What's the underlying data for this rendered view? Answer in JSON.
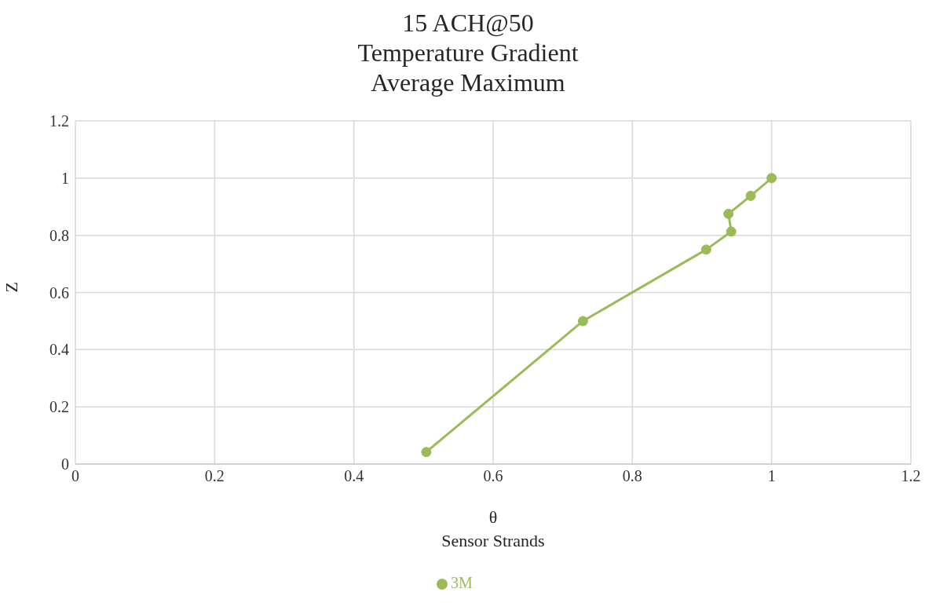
{
  "chart_data": {
    "type": "line",
    "title": "15 ACH@50\nTemperature Gradient\nAverage Maximum",
    "xlabel": "θ\nSensor Strands",
    "ylabel": "Z",
    "x": [
      0.504,
      0.729,
      0.906,
      0.942,
      0.938,
      0.97,
      1
    ],
    "series": [
      {
        "name": "3M",
        "color": "#9bbb59",
        "values": [
          0.042,
          0.5,
          0.75,
          0.813,
          0.875,
          0.938,
          1
        ]
      }
    ],
    "xlim": [
      0,
      1.2
    ],
    "xticks": [
      0,
      0.2,
      0.4,
      0.6,
      0.8,
      1,
      1.2
    ],
    "ylim": [
      0,
      1.2
    ],
    "yticks": [
      0,
      0.2,
      0.4,
      0.6,
      0.8,
      1,
      1.2
    ],
    "grid": true,
    "legend": "bottom",
    "marker": "circle",
    "line_style": "solid"
  }
}
